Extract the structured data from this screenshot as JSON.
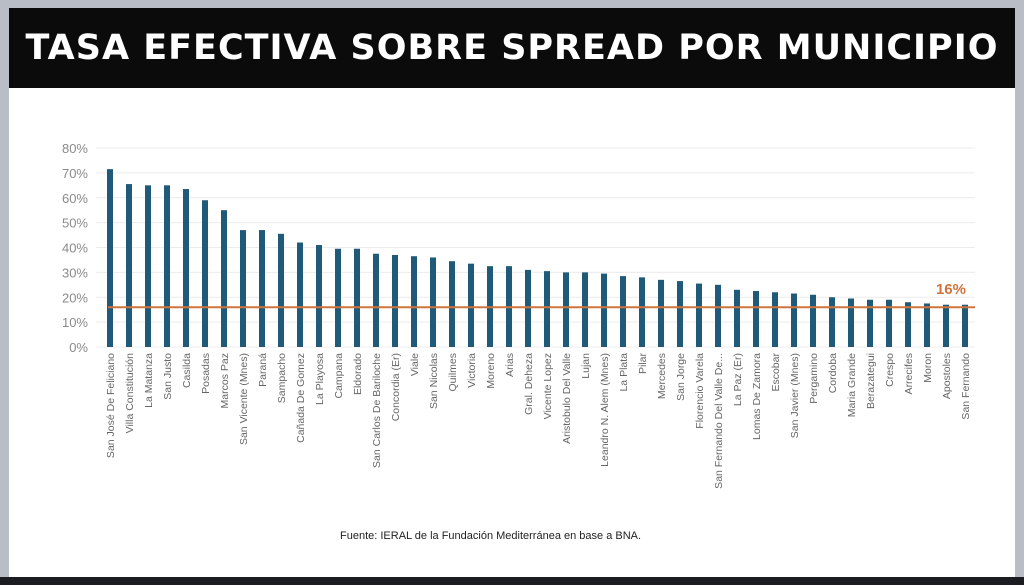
{
  "title": "TASA EFECTIVA SOBRE SPREAD POR MUNICIPIO",
  "source": "Fuente: IERAL de la Fundación Mediterránea en base a BNA.",
  "colors": {
    "bar": "#1f5a78",
    "reference": "#d0743c",
    "grid": "#ececec"
  },
  "chart_data": {
    "type": "bar",
    "title": "TASA EFECTIVA SOBRE SPREAD POR MUNICIPIO",
    "xlabel": "",
    "ylabel": "",
    "ylim": [
      0,
      80
    ],
    "yticks": [
      "0%",
      "10%",
      "20%",
      "30%",
      "40%",
      "50%",
      "60%",
      "70%",
      "80%"
    ],
    "grid": true,
    "reference_line": {
      "value": 16,
      "label": "16%"
    },
    "categories": [
      "San José De Feliciano",
      "Villa Constitución",
      "La Matanza",
      "San Justo",
      "Casilda",
      "Posadas",
      "Marcos Paz",
      "San Vicente (Mnes)",
      "Paraná",
      "Sampacho",
      "Cañada De Gomez",
      "La Playosa",
      "Campana",
      "Eldorado",
      "San Carlos De Bariloche",
      "Concordia (Er)",
      "Viale",
      "San Nicolas",
      "Quilmes",
      "Victoria",
      "Moreno",
      "Arias",
      "Gral. Deheza",
      "Vicente Lopez",
      "Aristobulo Del Valle",
      "Lujan",
      "Leandro N. Alem (Mnes)",
      "La Plata",
      "Pilar",
      "Mercedes",
      "San Jorge",
      "Florencio Varela",
      "San Fernando Del Valle De...",
      "La Paz (Er)",
      "Lomas De Zamora",
      "Escobar",
      "San Javier (Mnes)",
      "Pergamino",
      "Cordoba",
      "Maria Grande",
      "Berazategui",
      "Crespo",
      "Arrecifes",
      "Moron",
      "Apostoles",
      "San Fernando"
    ],
    "values": [
      71.5,
      65.5,
      65,
      65,
      63.5,
      59,
      55,
      47,
      47,
      45.5,
      42,
      41,
      39.5,
      39.5,
      37.5,
      37,
      36.5,
      36,
      34.5,
      33.5,
      32.5,
      32.5,
      31,
      30.5,
      30,
      30,
      29.5,
      28.5,
      28,
      27,
      26.5,
      25.5,
      25,
      23,
      22.5,
      22,
      21.5,
      21,
      20,
      19.5,
      19,
      19,
      18,
      17.5,
      17,
      17
    ]
  }
}
